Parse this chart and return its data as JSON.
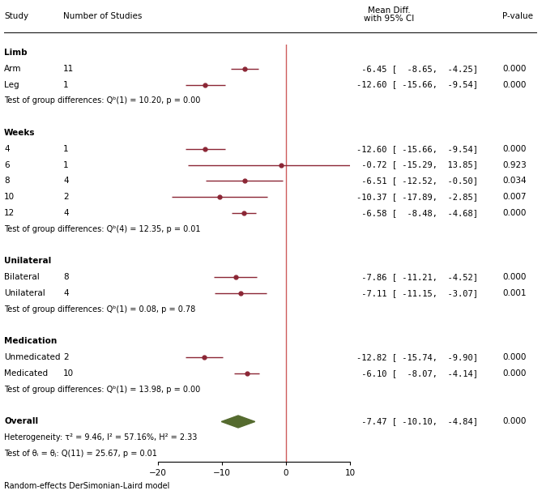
{
  "rows": [
    {
      "label": "Arm",
      "n": "11",
      "mean": -6.45,
      "ci_lo": -8.65,
      "ci_hi": -4.25,
      "pval": "0.000"
    },
    {
      "label": "Leg",
      "n": "1",
      "mean": -12.6,
      "ci_lo": -15.66,
      "ci_hi": -9.54,
      "pval": "0.000"
    },
    {
      "label": "4",
      "n": "1",
      "mean": -12.6,
      "ci_lo": -15.66,
      "ci_hi": -9.54,
      "pval": "0.000"
    },
    {
      "label": "6",
      "n": "1",
      "mean": -0.72,
      "ci_lo": -15.29,
      "ci_hi": 13.85,
      "pval": "0.923"
    },
    {
      "label": "8",
      "n": "4",
      "mean": -6.51,
      "ci_lo": -12.52,
      "ci_hi": -0.5,
      "pval": "0.034"
    },
    {
      "label": "10",
      "n": "2",
      "mean": -10.37,
      "ci_lo": -17.89,
      "ci_hi": -2.85,
      "pval": "0.007"
    },
    {
      "label": "12",
      "n": "4",
      "mean": -6.58,
      "ci_lo": -8.48,
      "ci_hi": -4.68,
      "pval": "0.000"
    },
    {
      "label": "Bilateral",
      "n": "8",
      "mean": -7.86,
      "ci_lo": -11.21,
      "ci_hi": -4.52,
      "pval": "0.000"
    },
    {
      "label": "Unilateral",
      "n": "4",
      "mean": -7.11,
      "ci_lo": -11.15,
      "ci_hi": -3.07,
      "pval": "0.001"
    },
    {
      "label": "Unmedicated",
      "n": "2",
      "mean": -12.82,
      "ci_lo": -15.74,
      "ci_hi": -9.9,
      "pval": "0.000"
    },
    {
      "label": "Medicated",
      "n": "10",
      "mean": -6.1,
      "ci_lo": -8.07,
      "ci_hi": -4.14,
      "pval": "0.000"
    },
    {
      "label": "Overall",
      "n": "",
      "mean": -7.47,
      "ci_lo": -10.1,
      "ci_hi": -4.84,
      "pval": "0.000"
    }
  ],
  "heterogeneity_text": "Heterogeneity: τ² = 9.46, I² = 57.16%, H² = 2.33",
  "test_overall_text": "Test of θᵢ = θⱼ: Q(11) = 25.67, p = 0.01",
  "footer_text": "Random-effects DerSimonian-Laird model",
  "xmin": -20,
  "xmax": 10,
  "xticks": [
    -20,
    -10,
    0,
    10
  ],
  "dot_color": "#8B2635",
  "diamond_color": "#556B2F",
  "ci_line_color": "#8B2635",
  "ref_line_color": "#CD5C5C",
  "text_color": "#000000",
  "bg_color": "#FFFFFF"
}
